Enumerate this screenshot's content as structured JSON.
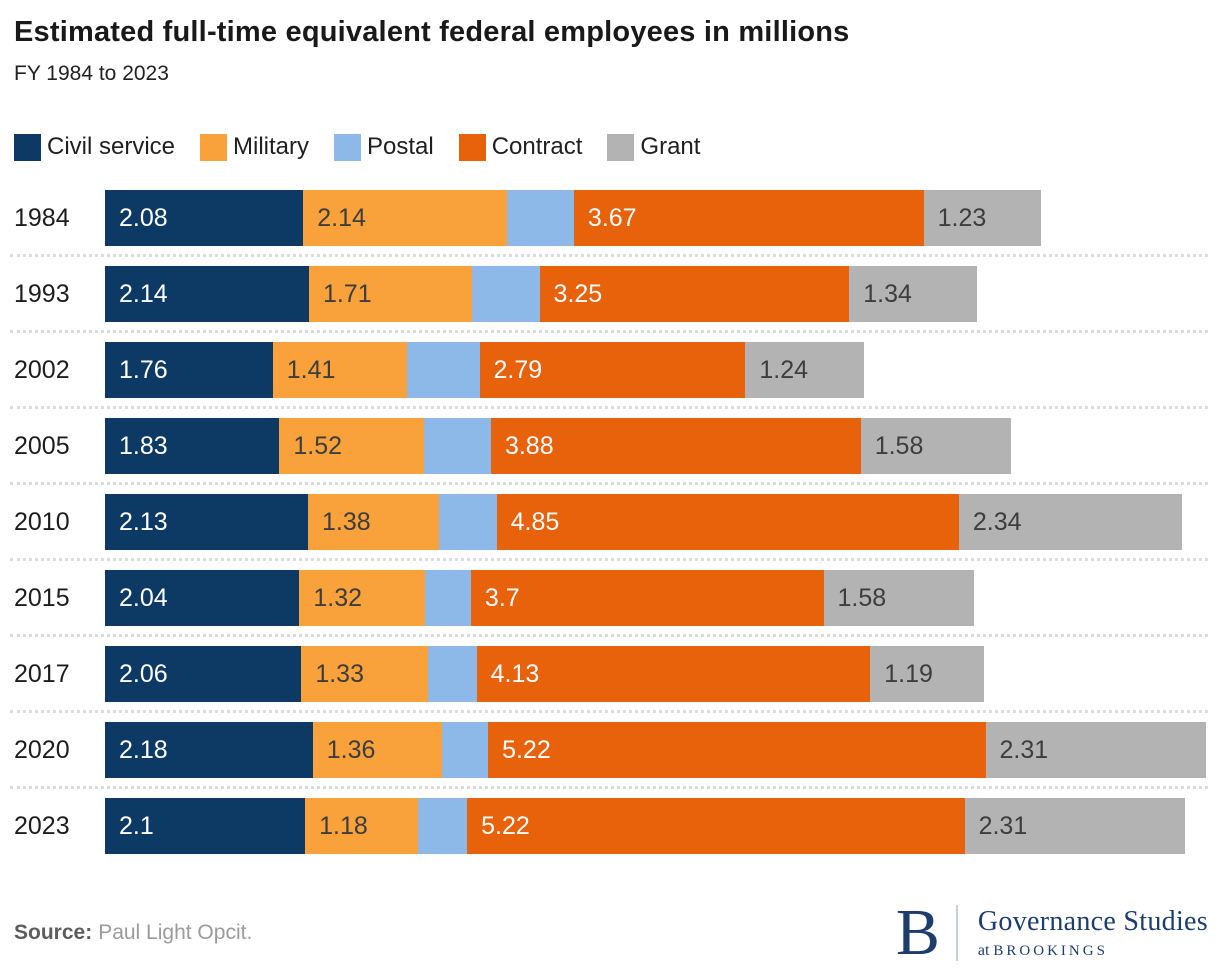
{
  "header": {
    "title": "Estimated full-time equivalent federal employees in millions",
    "subtitle": "FY 1984 to 2023"
  },
  "legend": [
    {
      "label": "Civil service",
      "color": "#0d3a65"
    },
    {
      "label": "Military",
      "color": "#f9a13a"
    },
    {
      "label": "Postal",
      "color": "#8cb9e8"
    },
    {
      "label": "Contract",
      "color": "#e8610b"
    },
    {
      "label": "Grant",
      "color": "#b3b3b3"
    }
  ],
  "chart_data": {
    "type": "bar",
    "stacked": true,
    "orientation": "horizontal",
    "title": "Estimated full-time equivalent federal employees in millions",
    "subtitle": "FY 1984 to 2023",
    "unit": "millions of FTE employees",
    "legend_position": "top",
    "grid": false,
    "categories": [
      "1984",
      "1993",
      "2002",
      "2005",
      "2010",
      "2015",
      "2017",
      "2020",
      "2023"
    ],
    "series": [
      {
        "name": "Civil service",
        "color": "#0d3a65",
        "label_color": "#ffffff",
        "values": [
          2.08,
          2.14,
          1.76,
          1.83,
          2.13,
          2.04,
          2.06,
          2.18,
          2.1
        ],
        "labels": [
          "2.08",
          "2.14",
          "1.76",
          "1.83",
          "2.13",
          "2.04",
          "2.06",
          "2.18",
          "2.1"
        ]
      },
      {
        "name": "Military",
        "color": "#f9a13a",
        "label_color": "#3d3d3d",
        "values": [
          2.14,
          1.71,
          1.41,
          1.52,
          1.38,
          1.32,
          1.33,
          1.36,
          1.18
        ],
        "labels": [
          "2.14",
          "1.71",
          "1.41",
          "1.52",
          "1.38",
          "1.32",
          "1.33",
          "1.36",
          "1.18"
        ]
      },
      {
        "name": "Postal",
        "color": "#8cb9e8",
        "label_color": "#3d3d3d",
        "values": [
          0.7,
          0.71,
          0.76,
          0.7,
          0.6,
          0.48,
          0.51,
          0.48,
          0.52
        ],
        "labels": [
          "",
          "",
          "",
          "",
          "",
          "",
          "",
          "",
          ""
        ]
      },
      {
        "name": "Contract",
        "color": "#e8610b",
        "label_color": "#ffffff",
        "values": [
          3.67,
          3.25,
          2.79,
          3.88,
          4.85,
          3.7,
          4.13,
          5.22,
          5.22
        ],
        "labels": [
          "3.67",
          "3.25",
          "2.79",
          "3.88",
          "4.85",
          "3.7",
          "4.13",
          "5.22",
          "5.22"
        ]
      },
      {
        "name": "Grant",
        "color": "#b3b3b3",
        "label_color": "#3d3d3d",
        "values": [
          1.23,
          1.34,
          1.24,
          1.58,
          2.34,
          1.58,
          1.19,
          2.31,
          2.31
        ],
        "labels": [
          "1.23",
          "1.34",
          "1.24",
          "1.58",
          "2.34",
          "1.58",
          "1.19",
          "2.31",
          "2.31"
        ]
      }
    ]
  },
  "footer": {
    "source_label": "Source:",
    "source_text": "Paul Light Opcit.",
    "logo": {
      "initial": "B",
      "org": "Governance Studies",
      "sub_prefix": "at",
      "sub_name": "BROOKINGS",
      "color": "#1c3d6e"
    }
  }
}
